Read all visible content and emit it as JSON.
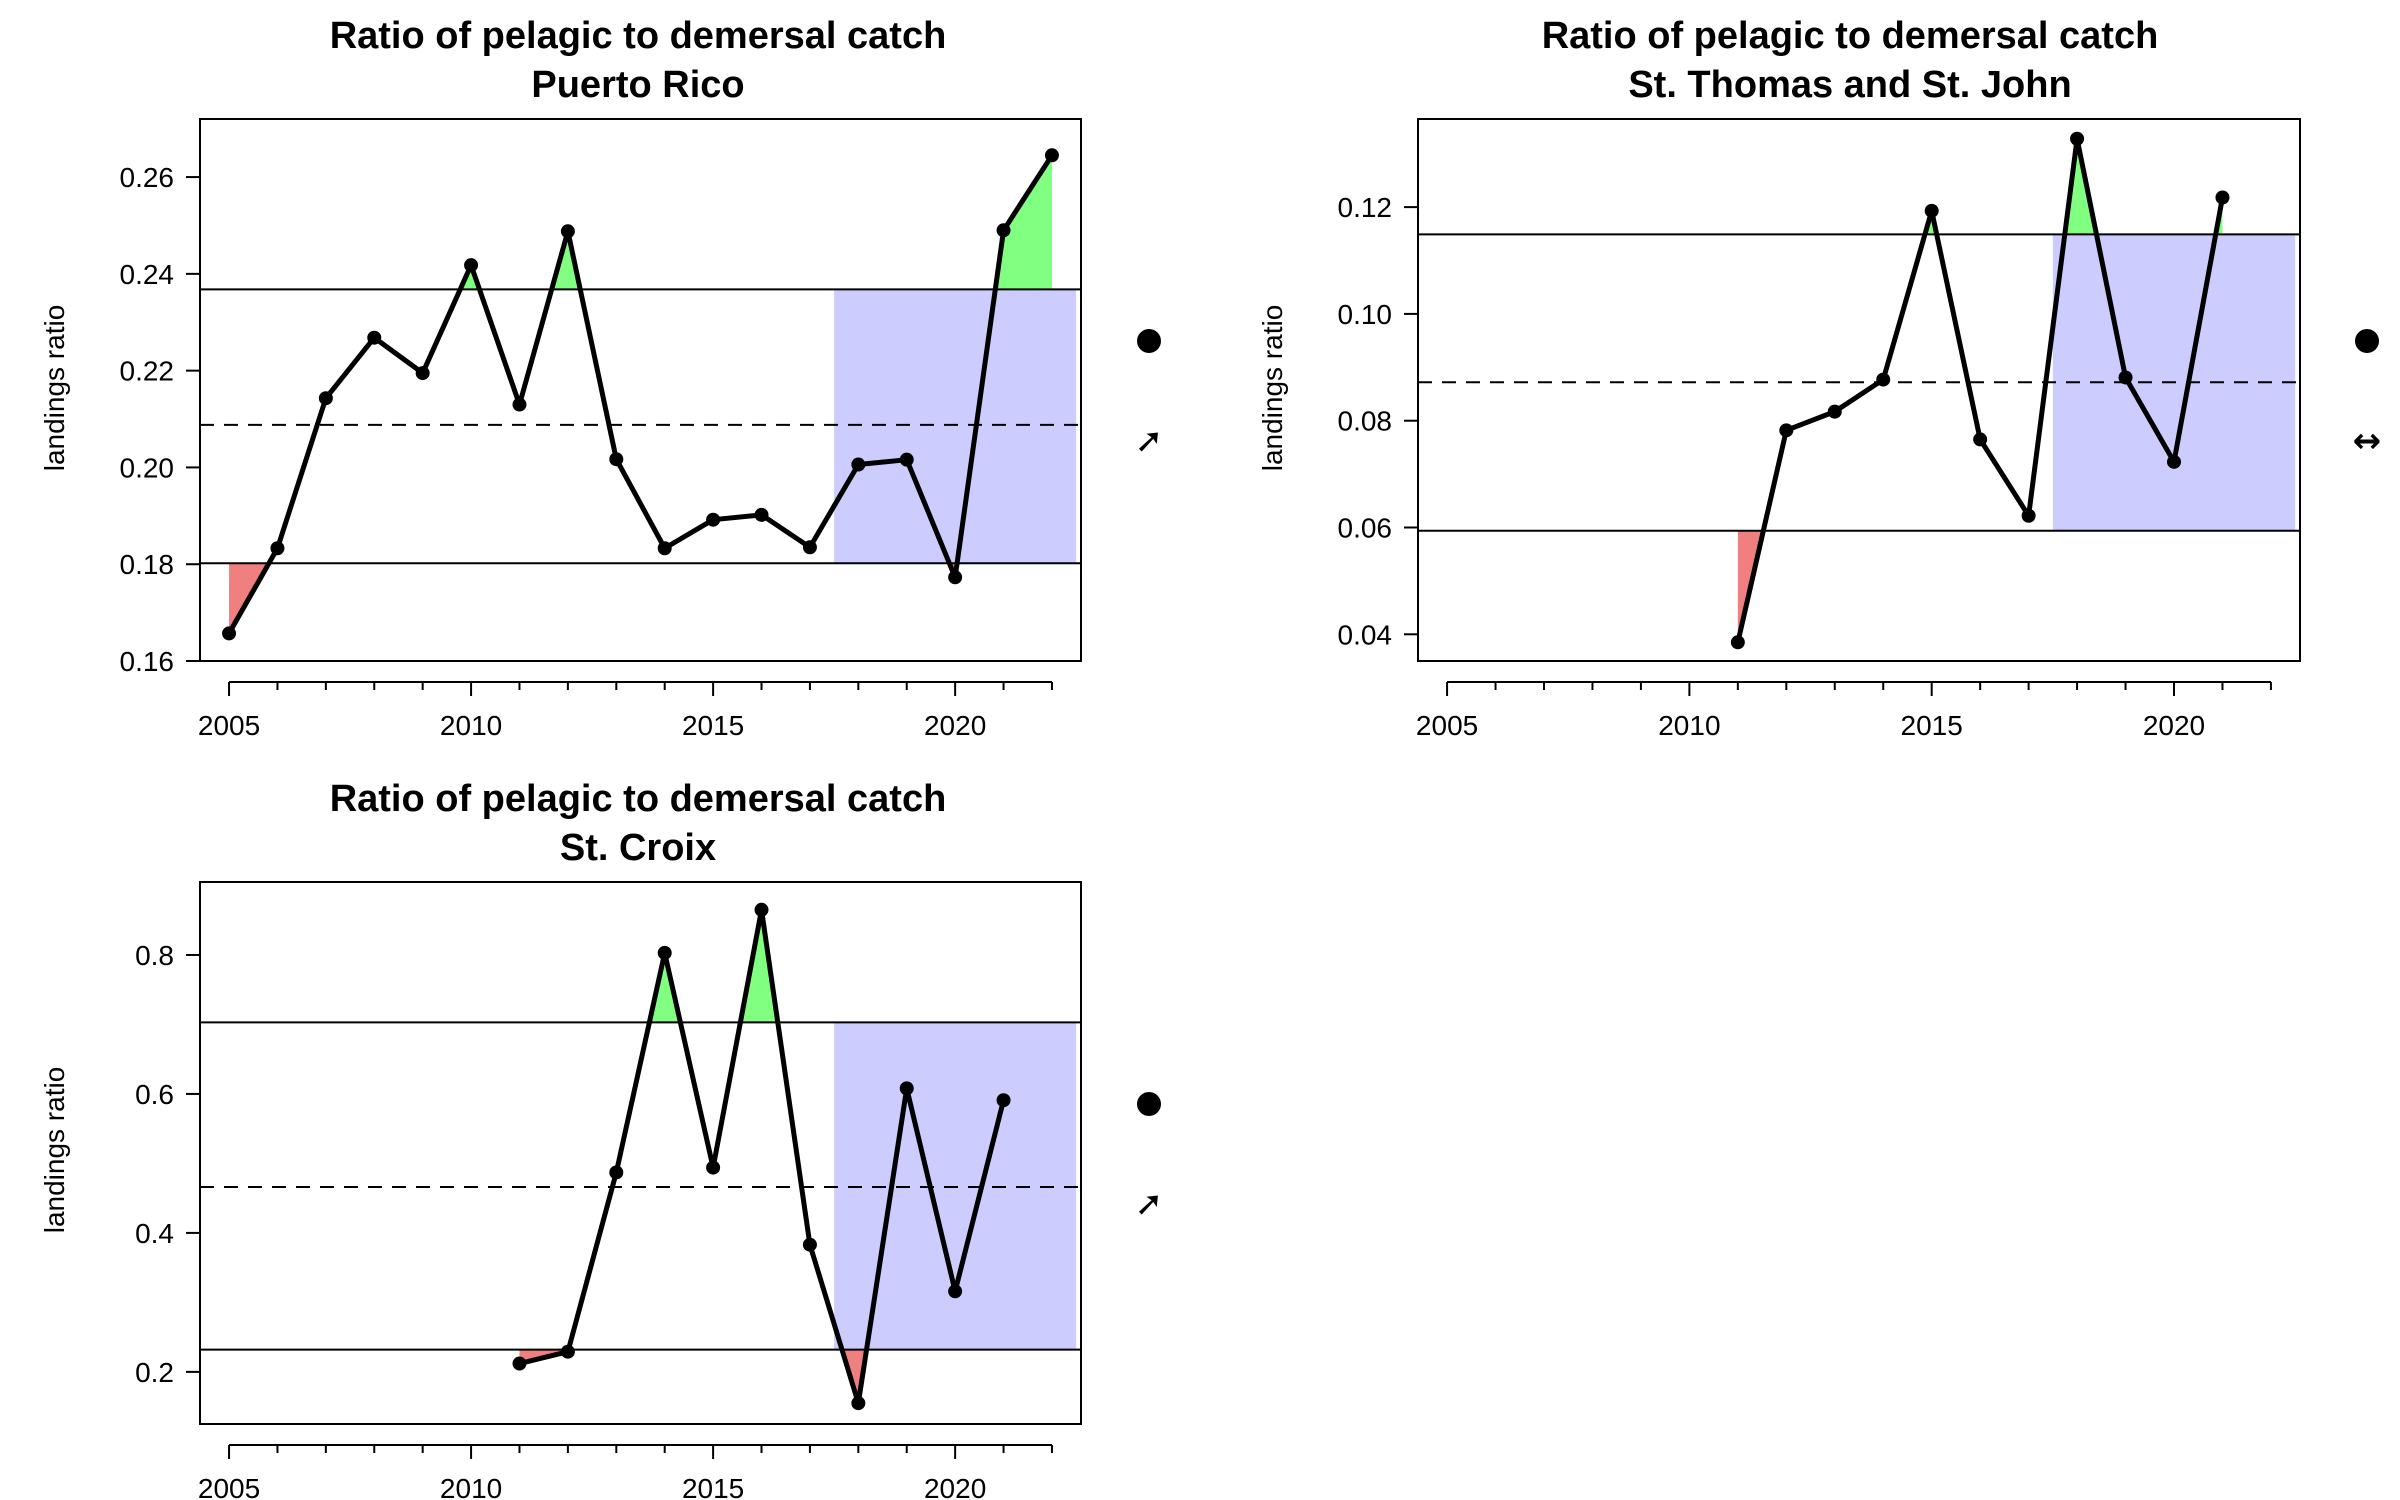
{
  "chart_data": [
    {
      "type": "line",
      "title": "Ratio of pelagic to demersal catch",
      "subtitle": "Puerto Rico",
      "ylabel": "landings ratio",
      "xlabel": "",
      "xlim": [
        2004.4,
        2022.6
      ],
      "ylim": [
        0.16,
        0.272
      ],
      "xticks": [
        2005,
        2010,
        2015,
        2020
      ],
      "yticks": [
        0.16,
        0.18,
        0.2,
        0.22,
        0.24,
        0.26
      ],
      "ytick_labels": [
        "0.16",
        "0.18",
        "0.20",
        "0.22",
        "0.24",
        "0.26"
      ],
      "x": [
        2005,
        2006,
        2007,
        2008,
        2009,
        2010,
        2011,
        2012,
        2013,
        2014,
        2015,
        2016,
        2017,
        2018,
        2019,
        2020,
        2021,
        2022
      ],
      "y": [
        0.1657,
        0.1833,
        0.2143,
        0.2268,
        0.2195,
        0.2418,
        0.213,
        0.2488,
        0.2017,
        0.1833,
        0.1892,
        0.1902,
        0.1835,
        0.2006,
        0.2016,
        0.1773,
        0.249,
        0.2645
      ],
      "mean": 0.2088,
      "upper": 0.2368,
      "lower": 0.1802,
      "recent_period": [
        2017.5,
        2022.5
      ],
      "status_symbol": "●",
      "trend_symbol": "➚",
      "grid": false
    },
    {
      "type": "line",
      "title": "Ratio of pelagic to demersal catch",
      "subtitle": "St. Thomas and St. John",
      "ylabel": "landings ratio",
      "xlabel": "",
      "xlim": [
        2004.4,
        2022.6
      ],
      "ylim": [
        0.035,
        0.1365
      ],
      "xticks": [
        2005,
        2010,
        2015,
        2020
      ],
      "yticks": [
        0.04,
        0.06,
        0.08,
        0.1,
        0.12
      ],
      "ytick_labels": [
        "0.04",
        "0.06",
        "0.08",
        "0.10",
        "0.12"
      ],
      "x": [
        2011,
        2012,
        2013,
        2014,
        2015,
        2016,
        2017,
        2018,
        2019,
        2020,
        2021
      ],
      "y": [
        0.0385,
        0.0782,
        0.0817,
        0.0877,
        0.1193,
        0.0765,
        0.0622,
        0.1328,
        0.0881,
        0.0723,
        0.1218
      ],
      "mean": 0.0872,
      "upper": 0.1149,
      "lower": 0.0594,
      "recent_period": [
        2017.5,
        2022.5
      ],
      "status_symbol": "●",
      "trend_symbol": "↔",
      "grid": false
    },
    {
      "type": "line",
      "title": "Ratio of pelagic to demersal catch",
      "subtitle": "St. Croix",
      "ylabel": "landings ratio",
      "xlabel": "",
      "xlim": [
        2004.4,
        2022.6
      ],
      "ylim": [
        0.125,
        0.905
      ],
      "xticks": [
        2005,
        2010,
        2015,
        2020
      ],
      "yticks": [
        0.2,
        0.4,
        0.6,
        0.8
      ],
      "ytick_labels": [
        "0.2",
        "0.4",
        "0.6",
        "0.8"
      ],
      "x": [
        2011,
        2012,
        2013,
        2014,
        2015,
        2016,
        2017,
        2018,
        2019,
        2020,
        2021
      ],
      "y": [
        0.212,
        0.229,
        0.487,
        0.803,
        0.494,
        0.865,
        0.383,
        0.155,
        0.608,
        0.316,
        0.591
      ],
      "mean": 0.466,
      "upper": 0.703,
      "lower": 0.232,
      "recent_period": [
        2017.5,
        2022.5
      ],
      "status_symbol": "●",
      "trend_symbol": "➚",
      "grid": false
    }
  ]
}
